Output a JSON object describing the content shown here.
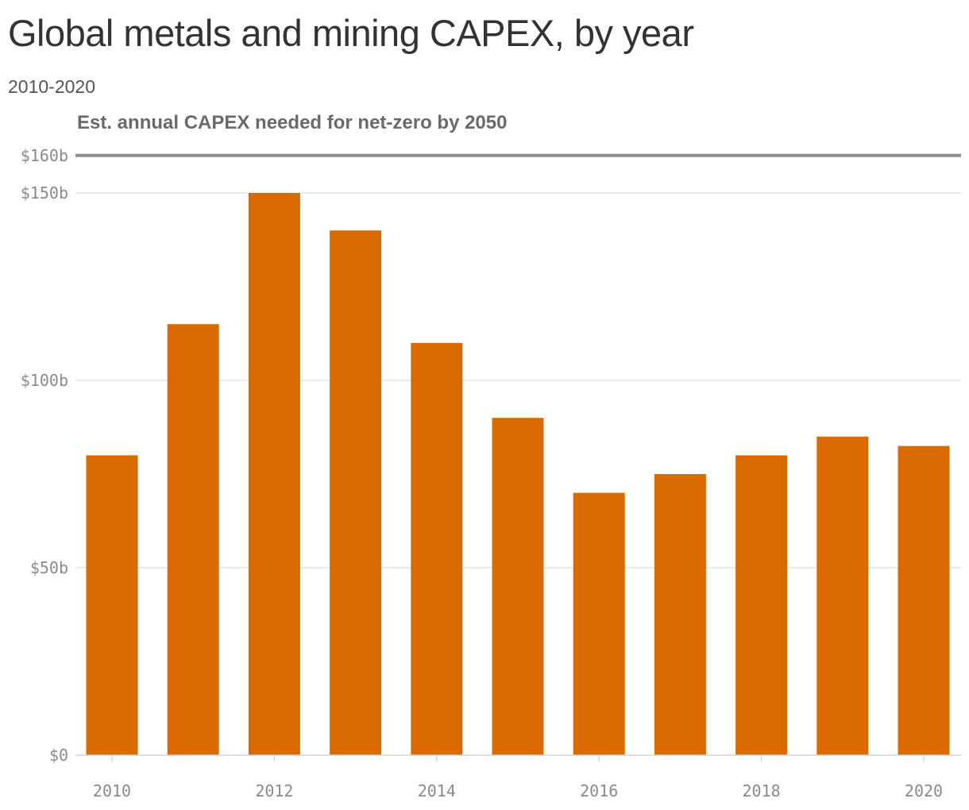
{
  "header": {
    "title": "Global metals and mining CAPEX, by year",
    "subtitle": "2010-2020"
  },
  "colors": {
    "bar": "#d86a00",
    "reference_line": "#8c8c8c",
    "grid": "#e3e3e3",
    "axis": "#d4d4d4"
  },
  "chart_data": {
    "type": "bar",
    "title": "Global metals and mining CAPEX, by year",
    "subtitle": "2010-2020",
    "xlabel": "",
    "ylabel": "",
    "categories": [
      "2010",
      "2011",
      "2012",
      "2013",
      "2014",
      "2015",
      "2016",
      "2017",
      "2018",
      "2019",
      "2020"
    ],
    "values": [
      80,
      115,
      150,
      140,
      110,
      90,
      70,
      75,
      80,
      85,
      82.5
    ],
    "x_tick_labels": [
      "2010",
      "2012",
      "2014",
      "2016",
      "2018",
      "2020"
    ],
    "y_ticks": [
      0,
      50,
      100,
      150,
      160
    ],
    "y_tick_labels": [
      "$0",
      "$50b",
      "$100b",
      "$150b",
      "$160b"
    ],
    "ylim": [
      0,
      160
    ],
    "grid": true,
    "reference_line": {
      "value": 160,
      "label": "Est. annual CAPEX needed for net-zero by 2050"
    }
  }
}
